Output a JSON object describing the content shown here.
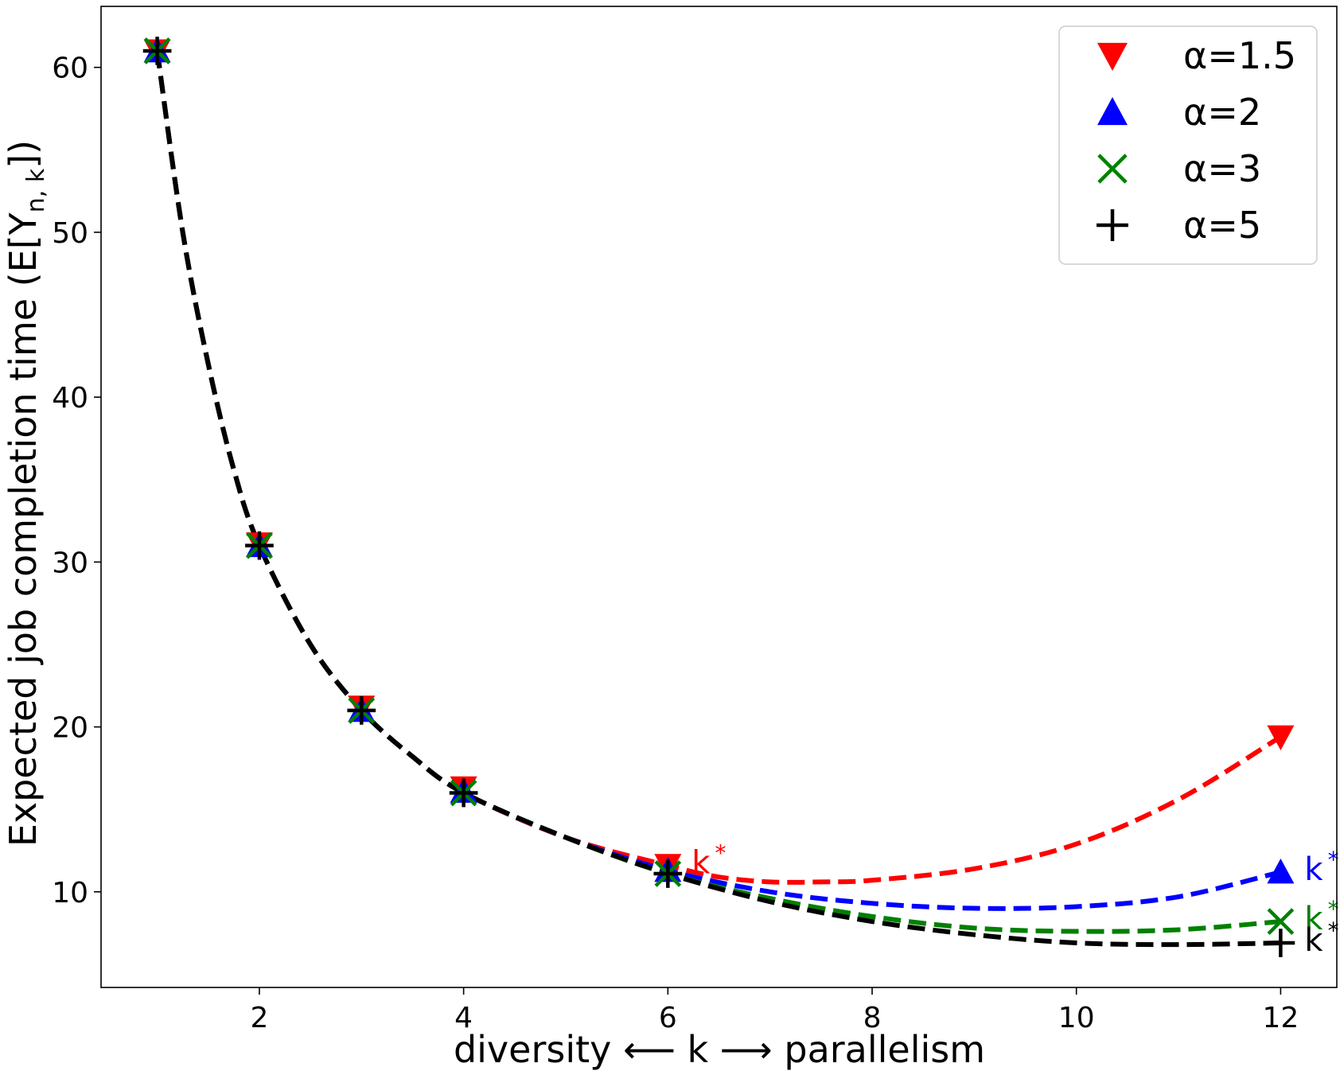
{
  "chart_data": {
    "type": "line",
    "xlabel": "diversity ⟵ k ⟶ parallelism",
    "ylabel": "Expected job completion time (E[Y",
    "ylabel_sub": "n, k",
    "ylabel_end": "])",
    "xlim": [
      0.45,
      12.55
    ],
    "ylim": [
      4.2,
      63.7
    ],
    "xticks": [
      2,
      4,
      6,
      8,
      10,
      12
    ],
    "yticks": [
      10,
      20,
      30,
      40,
      50,
      60
    ],
    "legend_position": "top-right",
    "kstar_label": "k",
    "kstar_sup": "*",
    "series": [
      {
        "name": "α=1.5",
        "color": "#ff0000",
        "marker": "triangle-down",
        "x": [
          1,
          2,
          3,
          4,
          6,
          12
        ],
        "y": [
          61.0,
          31.1,
          21.2,
          16.3,
          11.6,
          19.4
        ],
        "curve": [
          [
            6,
            11.6
          ],
          [
            6.5,
            10.9
          ],
          [
            7,
            10.6
          ],
          [
            7.5,
            10.6
          ],
          [
            8,
            10.7
          ],
          [
            9,
            11.4
          ],
          [
            10,
            12.9
          ],
          [
            11,
            15.6
          ],
          [
            12,
            19.4
          ]
        ],
        "kstar_at": 6
      },
      {
        "name": "α=2",
        "color": "#0000ff",
        "marker": "triangle-up",
        "x": [
          1,
          2,
          3,
          4,
          6,
          12
        ],
        "y": [
          61.0,
          31.0,
          21.0,
          16.1,
          11.3,
          11.2
        ],
        "curve": [
          [
            6,
            11.3
          ],
          [
            7,
            10.0
          ],
          [
            8,
            9.3
          ],
          [
            9,
            9.0
          ],
          [
            10,
            9.1
          ],
          [
            11,
            9.7
          ],
          [
            12,
            11.2
          ]
        ],
        "kstar_at": 12
      },
      {
        "name": "α=3",
        "color": "#008000",
        "marker": "x",
        "x": [
          1,
          2,
          3,
          4,
          6,
          12
        ],
        "y": [
          61.0,
          31.0,
          21.0,
          16.0,
          11.1,
          8.2
        ],
        "curve": [
          [
            6,
            11.1
          ],
          [
            7,
            9.6
          ],
          [
            8,
            8.5
          ],
          [
            9,
            7.8
          ],
          [
            10,
            7.6
          ],
          [
            11,
            7.7
          ],
          [
            12,
            8.2
          ]
        ],
        "kstar_at": 12
      },
      {
        "name": "α=5",
        "color": "#000000",
        "marker": "plus",
        "x": [
          1,
          2,
          3,
          4,
          6,
          12
        ],
        "y": [
          61.0,
          31.0,
          21.0,
          16.0,
          11.1,
          6.9
        ],
        "curve": [
          [
            6,
            11.1
          ],
          [
            7,
            9.4
          ],
          [
            8,
            8.2
          ],
          [
            9,
            7.4
          ],
          [
            10,
            6.9
          ],
          [
            11,
            6.8
          ],
          [
            12,
            6.9
          ]
        ],
        "kstar_at": 12
      }
    ],
    "shared_curve": [
      [
        1,
        61.0
      ],
      [
        1.25,
        50.0
      ],
      [
        1.5,
        42.0
      ],
      [
        1.75,
        35.6
      ],
      [
        2,
        31.0
      ],
      [
        2.5,
        25.0
      ],
      [
        3,
        21.0
      ],
      [
        3.5,
        18.2
      ],
      [
        4,
        16.0
      ],
      [
        5,
        13.3
      ],
      [
        6,
        11.2
      ]
    ]
  }
}
